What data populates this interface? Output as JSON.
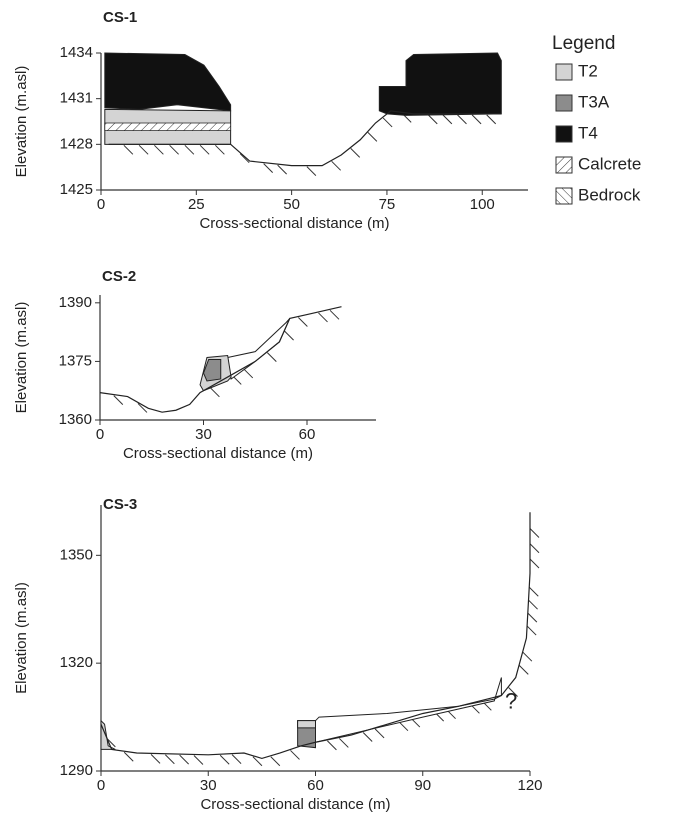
{
  "chart_data": [
    {
      "type": "line",
      "title": "CS-1",
      "xlabel": "Cross-sectional distance (m)",
      "ylabel": "Elevation (m.asl)",
      "xlim": [
        0,
        112
      ],
      "ylim": [
        1425,
        1434
      ],
      "xticks": [
        0,
        25,
        50,
        75,
        100
      ],
      "yticks": [
        1425,
        1428,
        1431,
        1434
      ],
      "x": [
        2,
        34,
        39,
        50,
        58,
        63,
        68,
        72,
        76,
        82,
        105
      ],
      "values": [
        1428,
        1428,
        1426.9,
        1426.6,
        1426.6,
        1427.3,
        1428.3,
        1429.4,
        1430.2,
        1430,
        1430
      ],
      "deposits": [
        {
          "fill": "#111111",
          "x": [
            1,
            22,
            27,
            31,
            34,
            34,
            20,
            10,
            1
          ],
          "y": [
            1434,
            1433.9,
            1433.2,
            1431.8,
            1430.6,
            1430.2,
            1430.6,
            1430.3,
            1430.4
          ]
        },
        {
          "fill": "#d4d4d4",
          "x": [
            1,
            34,
            34,
            1
          ],
          "y": [
            1430.3,
            1430.2,
            1428,
            1428
          ]
        },
        {
          "fill": "#111111",
          "x": [
            73,
            73,
            80,
            80,
            82,
            104,
            105,
            105,
            80,
            75
          ],
          "y": [
            1430.2,
            1431.8,
            1431.8,
            1433.5,
            1433.9,
            1434,
            1433.5,
            1430,
            1429.9,
            1430
          ]
        }
      ],
      "calcrete": [
        {
          "x": [
            1,
            34,
            34,
            1
          ],
          "y": [
            1429.4,
            1429.4,
            1428.9,
            1428.9
          ]
        }
      ]
    },
    {
      "type": "line",
      "title": "CS-2",
      "xlabel": "Cross-sectional distance (m)",
      "ylabel": "Elevation (m.asl)",
      "xlim": [
        0,
        80
      ],
      "ylim": [
        1360,
        1392
      ],
      "xticks": [
        0,
        30,
        60
      ],
      "yticks": [
        1360,
        1375,
        1390
      ],
      "x": [
        0,
        8,
        14,
        18,
        22,
        26,
        29,
        35,
        45,
        52,
        55,
        60,
        70
      ],
      "values": [
        1367,
        1366,
        1363,
        1362,
        1362.5,
        1364,
        1367,
        1370,
        1375,
        1380,
        1386,
        1387,
        1389
      ],
      "deposits": [
        {
          "fill": "#ffffff",
          "x": [
            37,
            45,
            54,
            55,
            52,
            45,
            38
          ],
          "y": [
            1376,
            1377.5,
            1385,
            1386,
            1380,
            1375,
            1370.5
          ]
        },
        {
          "fill": "#d4d4d4",
          "x": [
            29,
            31,
            37,
            38,
            37,
            30
          ],
          "y": [
            1369,
            1376,
            1376.5,
            1371,
            1370,
            1367.5
          ]
        },
        {
          "fill": "#8c8c8c",
          "x": [
            30,
            31.5,
            35,
            35,
            31
          ],
          "y": [
            1372,
            1375.5,
            1375.5,
            1370.5,
            1370
          ]
        }
      ],
      "calcrete": []
    },
    {
      "type": "line",
      "title": "CS-3",
      "xlabel": "Cross-sectional distance (m)",
      "ylabel": "Elevation (m.asl)",
      "xlim": [
        0,
        120
      ],
      "ylim": [
        1290,
        1364
      ],
      "xticks": [
        0,
        30,
        60,
        90,
        120
      ],
      "yticks": [
        1290,
        1320,
        1350
      ],
      "x": [
        0,
        3,
        10,
        30,
        40,
        45,
        50,
        56,
        60,
        70,
        80,
        90,
        100,
        110,
        112,
        116,
        119,
        120,
        120
      ],
      "values": [
        1303,
        1296,
        1295,
        1294.5,
        1295,
        1293.5,
        1295,
        1297,
        1298,
        1300,
        1303,
        1306,
        1308,
        1310.5,
        1311,
        1316,
        1327,
        1345,
        1362
      ],
      "deposits": [
        {
          "fill": "#d4d4d4",
          "x": [
            0,
            1,
            2,
            4,
            0
          ],
          "y": [
            1304,
            1303,
            1297,
            1296,
            1296
          ]
        },
        {
          "fill": "#ffffff",
          "x": [
            60,
            61,
            80,
            100,
            110,
            112,
            112,
            110,
            90,
            60
          ],
          "y": [
            1304,
            1305,
            1306,
            1308,
            1310,
            1311,
            1316,
            1309.5,
            1305,
            1298
          ]
        },
        {
          "fill": "#8c8c8c",
          "x": [
            55,
            60,
            60,
            55
          ],
          "y": [
            1304,
            1304,
            1296.5,
            1297
          ]
        },
        {
          "fill": "#d4d4d4",
          "x": [
            55,
            60,
            60,
            55
          ],
          "y": [
            1304,
            1304,
            1302,
            1302
          ]
        }
      ],
      "calcrete": [],
      "annotation": {
        "text": "?",
        "x": 113,
        "y": 1309
      }
    }
  ],
  "legend": {
    "title": "Legend",
    "items": [
      {
        "label": "T2",
        "fill": "#d4d4d4"
      },
      {
        "label": "T3A",
        "fill": "#8c8c8c"
      },
      {
        "label": "T4",
        "fill": "#111111"
      },
      {
        "label": "Calcrete",
        "fill": "url(#calc)"
      },
      {
        "label": "Bedrock",
        "fill": "url(#bed)"
      }
    ]
  }
}
